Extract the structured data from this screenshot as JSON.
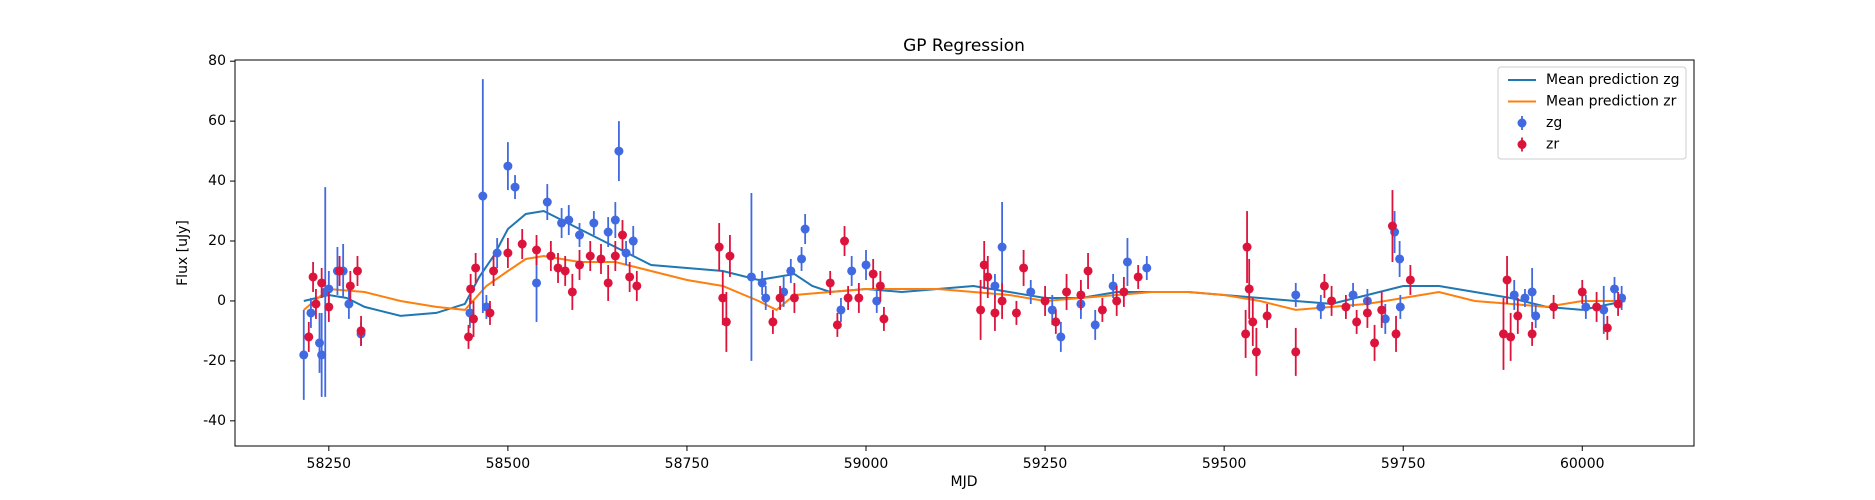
{
  "chart_data": {
    "type": "line",
    "title": "GP Regression",
    "xlabel": "MJD",
    "ylabel": "Flux [uJy]",
    "xlim": [
      58119,
      60156
    ],
    "ylim": [
      -48.4,
      80.4
    ],
    "xticks": [
      58250,
      58500,
      58750,
      59000,
      59250,
      59500,
      59750,
      60000
    ],
    "yticks": [
      -40,
      -20,
      0,
      20,
      40,
      60,
      80
    ],
    "legend": "upper right",
    "series": [
      {
        "name": "Mean prediction zg",
        "type": "line",
        "color": "#1f77b4",
        "x": [
          58215,
          58250,
          58275,
          58300,
          58350,
          58400,
          58440,
          58460,
          58480,
          58500,
          58525,
          58550,
          58575,
          58600,
          58625,
          58650,
          58675,
          58700,
          58750,
          58800,
          58850,
          58900,
          58925,
          58950,
          59000,
          59050,
          59100,
          59150,
          59200,
          59250,
          59300,
          59350,
          59400,
          59450,
          59500,
          59550,
          59600,
          59650,
          59700,
          59750,
          59800,
          59850,
          59900,
          59950,
          60000,
          60060
        ],
        "values": [
          0,
          2,
          1,
          -2,
          -5,
          -4,
          -1,
          8,
          15,
          24,
          29,
          30,
          27,
          24,
          21,
          18,
          15,
          12,
          11,
          10,
          7,
          9,
          5,
          3,
          4,
          3,
          4,
          5,
          3,
          1,
          1,
          3,
          3,
          3,
          2,
          1,
          0,
          -1,
          2,
          5,
          5,
          3,
          1,
          -2,
          -3,
          0
        ]
      },
      {
        "name": "Mean prediction zr",
        "type": "line",
        "color": "#ff7f0e",
        "x": [
          58215,
          58250,
          58300,
          58350,
          58400,
          58440,
          58470,
          58500,
          58525,
          58550,
          58600,
          58650,
          58700,
          58750,
          58800,
          58850,
          58875,
          58900,
          58950,
          59000,
          59100,
          59150,
          59200,
          59250,
          59300,
          59350,
          59400,
          59450,
          59500,
          59550,
          59600,
          59650,
          59700,
          59750,
          59800,
          59850,
          59900,
          59950,
          60000,
          60060
        ],
        "values": [
          -3,
          4,
          3,
          0,
          -2,
          -3,
          5,
          10,
          14,
          15,
          13,
          13,
          10,
          7,
          5,
          0,
          -3,
          2,
          3,
          4,
          4,
          3,
          2,
          0,
          1,
          2,
          3,
          3,
          2,
          0,
          -3,
          -2,
          -1,
          1,
          3,
          0,
          -1,
          -2,
          0,
          0
        ]
      },
      {
        "name": "zg",
        "type": "errorbar",
        "color": "#4169e1",
        "x": [
          58215,
          58225,
          58237,
          58240,
          58245,
          58250,
          58262,
          58270,
          58278,
          58295,
          58447,
          58465,
          58470,
          58485,
          58500,
          58510,
          58540,
          58555,
          58575,
          58585,
          58600,
          58620,
          58640,
          58650,
          58655,
          58665,
          58675,
          58840,
          58855,
          58860,
          58885,
          58895,
          58910,
          58915,
          58965,
          58980,
          59000,
          59015,
          59180,
          59190,
          59230,
          59260,
          59272,
          59300,
          59320,
          59345,
          59365,
          59392,
          59600,
          59635,
          59680,
          59700,
          59725,
          59738,
          59745,
          59746,
          59905,
          59920,
          59930,
          59935,
          60005,
          60030,
          60045,
          60055
        ],
        "values": [
          -18,
          -4,
          -14,
          -18,
          3,
          4,
          10,
          10,
          -1,
          -11,
          -4,
          35,
          -2,
          16,
          45,
          38,
          6,
          33,
          26,
          27,
          22,
          26,
          23,
          27,
          50,
          16,
          20,
          8,
          6,
          1,
          3,
          10,
          14,
          24,
          -3,
          10,
          12,
          0,
          5,
          18,
          3,
          -3,
          -12,
          -1,
          -8,
          5,
          13,
          11,
          2,
          -2,
          2,
          0,
          -6,
          23,
          14,
          -2,
          2,
          1,
          3,
          -5,
          -2,
          -3,
          4,
          1
        ],
        "errors": [
          15,
          5,
          10,
          14,
          35,
          6,
          8,
          9,
          5,
          4,
          5,
          39,
          4,
          5,
          8,
          4,
          13,
          6,
          5,
          5,
          4,
          4,
          5,
          6,
          10,
          4,
          5,
          28,
          4,
          4,
          5,
          4,
          4,
          5,
          4,
          5,
          5,
          4,
          4,
          15,
          4,
          5,
          5,
          5,
          5,
          4,
          8,
          4,
          4,
          4,
          4,
          4,
          5,
          7,
          6,
          4,
          5,
          3,
          8,
          4,
          4,
          8,
          4,
          4
        ]
      },
      {
        "name": "zr",
        "type": "errorbar",
        "color": "#dc143c",
        "x": [
          58222,
          58228,
          58232,
          58240,
          58250,
          58265,
          58280,
          58290,
          58295,
          58445,
          58448,
          58452,
          58455,
          58475,
          58480,
          58500,
          58520,
          58540,
          58560,
          58570,
          58580,
          58590,
          58600,
          58615,
          58630,
          58640,
          58650,
          58660,
          58670,
          58680,
          58795,
          58800,
          58805,
          58810,
          58870,
          58880,
          58900,
          58950,
          58960,
          58970,
          58975,
          58990,
          59010,
          59020,
          59025,
          59160,
          59165,
          59170,
          59180,
          59190,
          59210,
          59220,
          59250,
          59265,
          59280,
          59300,
          59310,
          59330,
          59350,
          59360,
          59380,
          59530,
          59532,
          59535,
          59540,
          59545,
          59560,
          59600,
          59640,
          59650,
          59670,
          59685,
          59700,
          59710,
          59720,
          59735,
          59740,
          59760,
          59890,
          59895,
          59900,
          59910,
          59930,
          59960,
          60000,
          60020,
          60035,
          60050
        ],
        "values": [
          -12,
          8,
          -1,
          6,
          -2,
          10,
          5,
          10,
          -10,
          -12,
          4,
          -6,
          11,
          -4,
          10,
          16,
          19,
          17,
          15,
          11,
          10,
          3,
          12,
          15,
          14,
          6,
          15,
          22,
          8,
          5,
          18,
          1,
          -7,
          15,
          -7,
          1,
          1,
          6,
          -8,
          20,
          1,
          1,
          9,
          5,
          -6,
          -3,
          12,
          8,
          -4,
          0,
          -4,
          11,
          0,
          -7,
          3,
          2,
          10,
          -3,
          0,
          3,
          8,
          -11,
          18,
          4,
          -7,
          -17,
          -5,
          -17,
          5,
          0,
          -2,
          -7,
          -4,
          -14,
          -3,
          25,
          -11,
          7,
          -11,
          7,
          -12,
          -5,
          -11,
          -2,
          3,
          -2,
          -9,
          -1
        ],
        "errors": [
          5,
          5,
          5,
          5,
          5,
          5,
          5,
          5,
          5,
          4,
          5,
          6,
          5,
          4,
          5,
          5,
          5,
          5,
          5,
          5,
          5,
          6,
          5,
          5,
          5,
          6,
          5,
          5,
          5,
          5,
          8,
          9,
          10,
          7,
          4,
          4,
          5,
          4,
          4,
          5,
          4,
          5,
          5,
          5,
          4,
          10,
          8,
          7,
          6,
          6,
          4,
          6,
          5,
          4,
          6,
          5,
          6,
          4,
          5,
          5,
          4,
          8,
          12,
          10,
          8,
          8,
          4,
          8,
          4,
          5,
          4,
          4,
          5,
          6,
          6,
          12,
          6,
          5,
          12,
          8,
          8,
          6,
          4,
          4,
          4,
          5,
          4,
          4
        ]
      }
    ]
  }
}
